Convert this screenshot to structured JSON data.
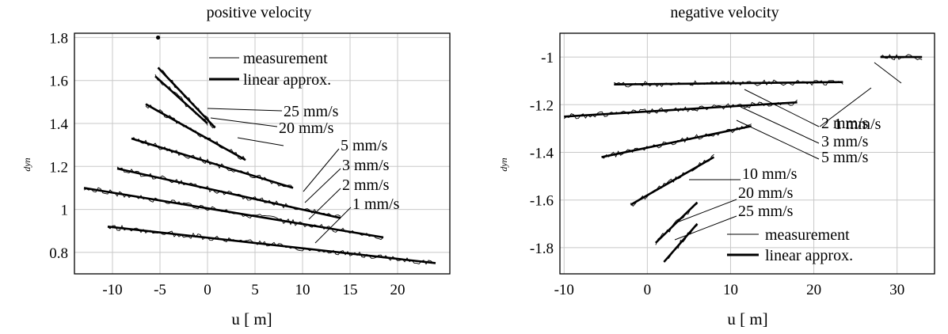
{
  "chart_data": [
    {
      "type": "line",
      "title": "positive velocity",
      "xlabel": "u [  m]",
      "ylabel": "dyn",
      "xlim": [
        -14,
        25.5
      ],
      "ylim": [
        0.7,
        1.82
      ],
      "xticks": [
        -10,
        -5,
        0,
        5,
        10,
        15,
        20
      ],
      "xtick_labels": [
        "-10",
        "-5",
        "0",
        "5",
        "10",
        "15",
        "20"
      ],
      "yticks": [
        0.8,
        1.0,
        1.2,
        1.4,
        1.6,
        1.8
      ],
      "ytick_labels": [
        "0.8",
        "1",
        "1.2",
        "1.4",
        "1.6",
        "1.8"
      ],
      "grid": true,
      "legend": {
        "position": "top-right",
        "entries": [
          "measurement",
          "linear approx."
        ]
      },
      "series": [
        {
          "name": "25 mm/s",
          "x": [
            -5.2,
            0.8
          ],
          "y": [
            1.66,
            1.38
          ]
        },
        {
          "name": "20 mm/s",
          "x": [
            -5.5,
            0.0
          ],
          "y": [
            1.62,
            1.4
          ]
        },
        {
          "name": "",
          "x": [
            -6.5,
            4.0
          ],
          "y": [
            1.49,
            1.23
          ]
        },
        {
          "name": "",
          "x": [
            -8.0,
            9.0
          ],
          "y": [
            1.33,
            1.1
          ]
        },
        {
          "name": "5 mm/s",
          "x": [
            -9.5,
            14.0
          ],
          "y": [
            1.19,
            0.96
          ]
        },
        {
          "name": "3 mm/s",
          "x": [
            -13.0,
            18.5
          ],
          "y": [
            1.1,
            0.87
          ]
        },
        {
          "name": "2 mm/s",
          "x": [
            -10.5,
            24.0
          ],
          "y": [
            0.92,
            0.75
          ]
        },
        {
          "name": "1 mm/s",
          "x": [
            -5.2,
            -5.2
          ],
          "y": [
            1.8,
            1.8
          ]
        }
      ],
      "annotations": [
        "25 mm/s",
        "20 mm/s",
        "5 mm/s",
        "3 mm/s",
        "2 mm/s",
        "1 mm/s"
      ]
    },
    {
      "type": "line",
      "title": "negative velocity",
      "xlabel": "u [  m]",
      "ylabel": "dyn",
      "xlim": [
        -10.5,
        34.5
      ],
      "ylim": [
        -1.91,
        -0.9
      ],
      "xticks": [
        -10,
        0,
        10,
        20,
        30
      ],
      "xtick_labels": [
        "-10",
        "0",
        "10",
        "20",
        "30"
      ],
      "yticks": [
        -1.0,
        -1.2,
        -1.4,
        -1.6,
        -1.8
      ],
      "ytick_labels": [
        "-1",
        "-1.2",
        "-1.4",
        "-1.6",
        "-1.8"
      ],
      "grid": true,
      "legend": {
        "position": "bottom-right",
        "entries": [
          "measurement",
          "linear approx."
        ]
      },
      "series": [
        {
          "name": "1 mm/s",
          "x": [
            28.0,
            33.0
          ],
          "y": [
            -1.0,
            -1.0
          ]
        },
        {
          "name": "2 mm/s",
          "x": [
            -4.0,
            23.5
          ],
          "y": [
            -1.115,
            -1.105
          ]
        },
        {
          "name": "3 mm/s",
          "x": [
            -10.0,
            18.0
          ],
          "y": [
            -1.25,
            -1.19
          ]
        },
        {
          "name": "5 mm/s",
          "x": [
            -5.5,
            12.5
          ],
          "y": [
            -1.42,
            -1.29
          ]
        },
        {
          "name": "10 mm/s",
          "x": [
            -2.0,
            8.0
          ],
          "y": [
            -1.62,
            -1.42
          ]
        },
        {
          "name": "20 mm/s",
          "x": [
            1.0,
            6.0
          ],
          "y": [
            -1.78,
            -1.61
          ]
        },
        {
          "name": "25 mm/s",
          "x": [
            2.0,
            6.0
          ],
          "y": [
            -1.86,
            -1.7
          ]
        }
      ],
      "annotations": [
        "1 mm/s",
        "2 mm/s",
        "3 mm/s",
        "5 mm/s",
        "10 mm/s",
        "20 mm/s",
        "25 mm/s"
      ]
    }
  ]
}
